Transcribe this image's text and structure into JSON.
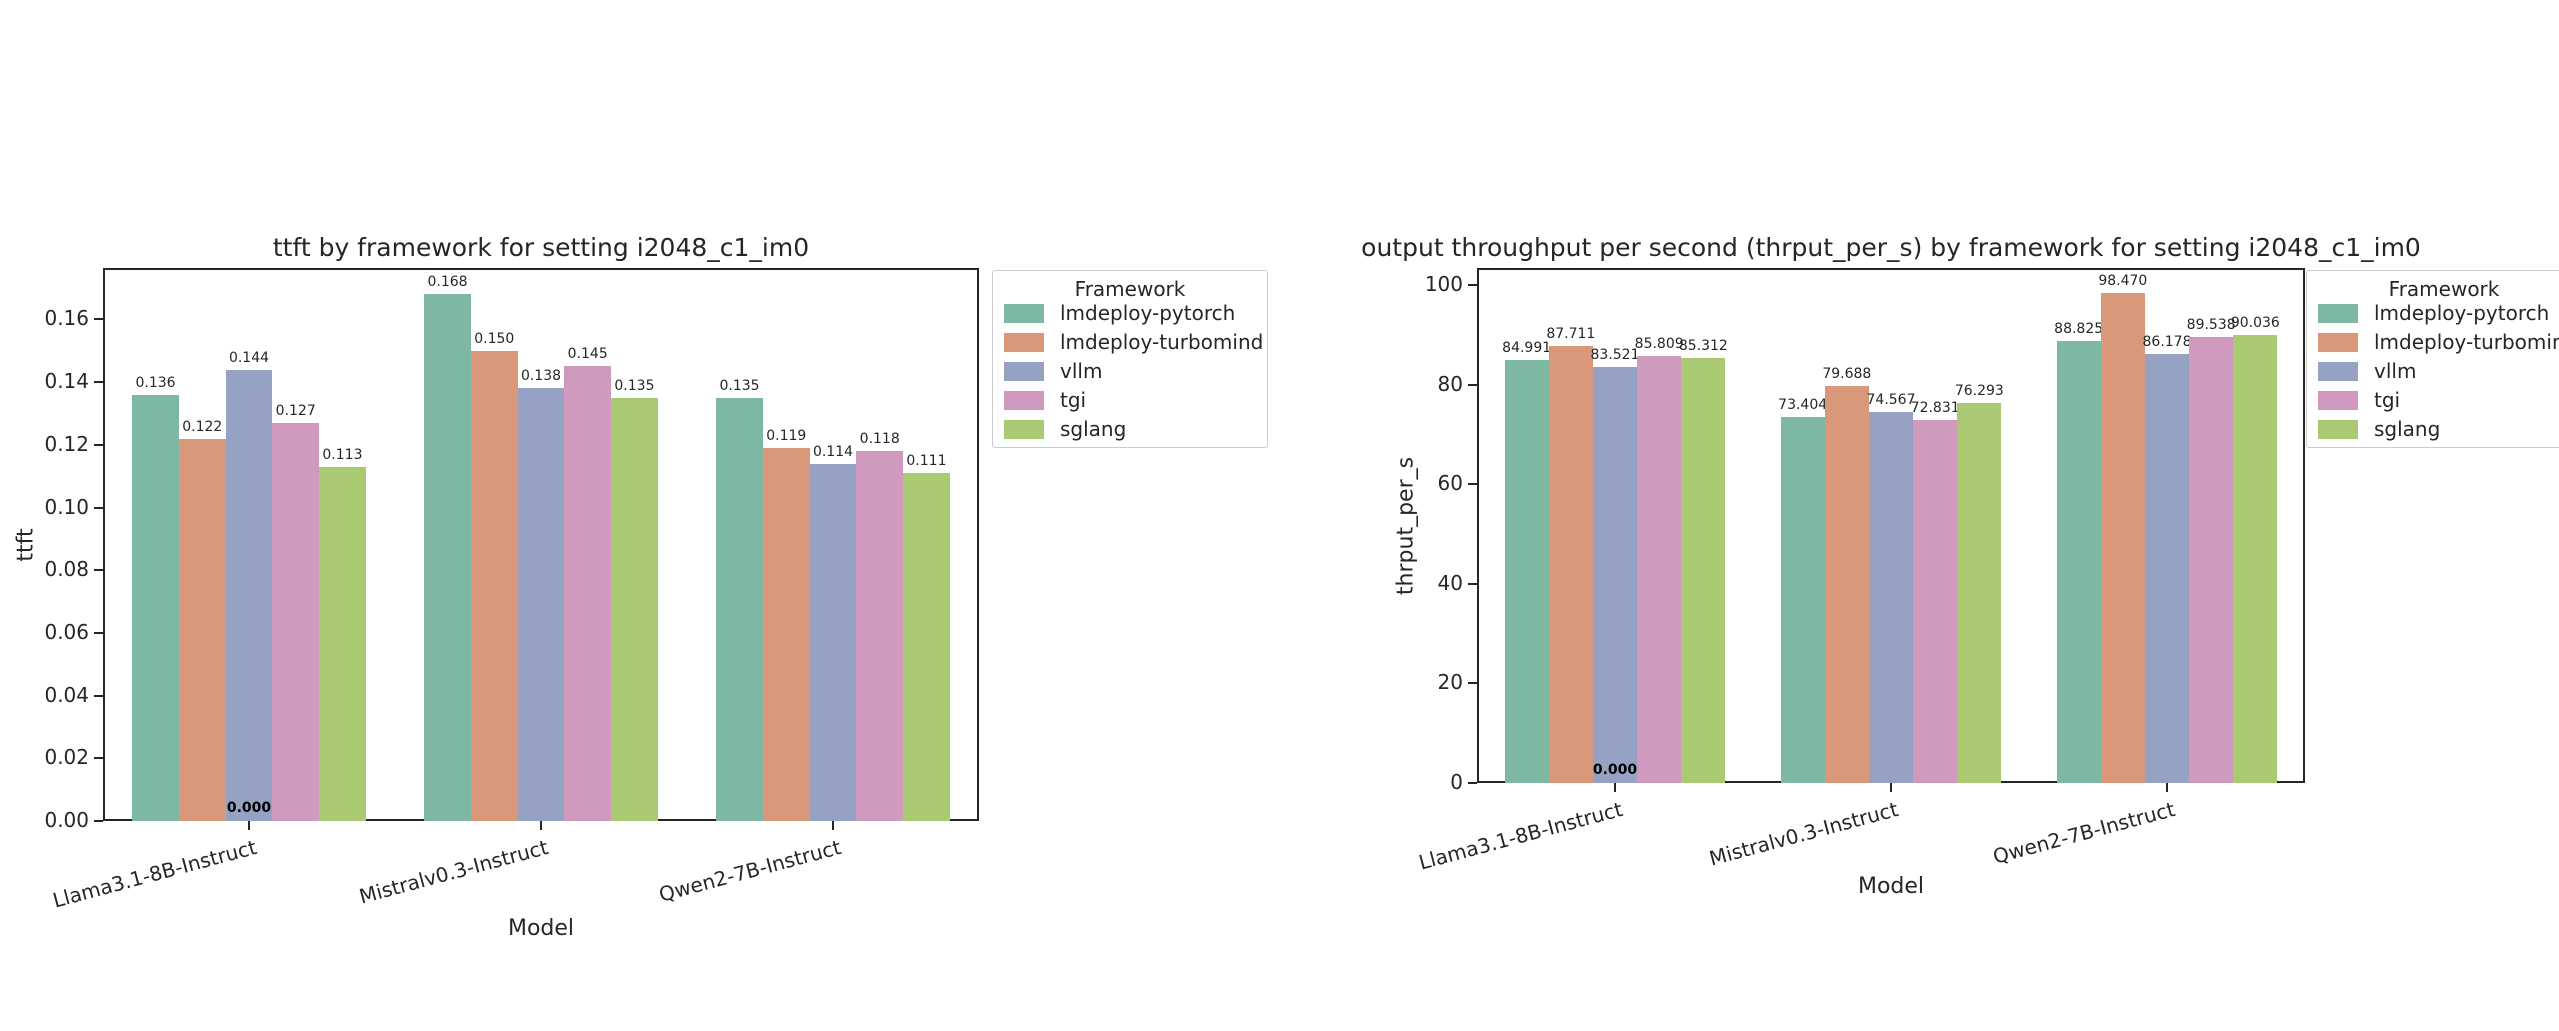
{
  "page": {
    "background": "#ffffff"
  },
  "colors": {
    "axis": "#262626",
    "text": "#262626",
    "legend_border": "#cccccc",
    "framework_colors": {
      "lmdeploy-pytorch": "#7eb8a3",
      "lmdeploy-turbomind": "#da987a",
      "vllm": "#95a2c3",
      "tgi": "#cf9abd",
      "sglang": "#a9c973"
    }
  },
  "legend": {
    "title": "Framework",
    "entries": [
      "lmdeploy-pytorch",
      "lmdeploy-turbomind",
      "vllm",
      "tgi",
      "sglang"
    ]
  },
  "chart_data": [
    {
      "type": "bar",
      "title": "ttft by framework for setting i2048_c1_im0",
      "xlabel": "Model",
      "ylabel": "ttft",
      "categories": [
        "Llama3.1-8B-Instruct",
        "Mistralv0.3-Instruct",
        "Qwen2-7B-Instruct"
      ],
      "series": [
        {
          "name": "lmdeploy-pytorch",
          "values": [
            0.136,
            0.168,
            0.135
          ]
        },
        {
          "name": "lmdeploy-turbomind",
          "values": [
            0.122,
            0.15,
            0.119
          ]
        },
        {
          "name": "vllm",
          "values": [
            0.144,
            0.138,
            0.114
          ]
        },
        {
          "name": "tgi",
          "values": [
            0.127,
            0.145,
            0.118
          ]
        },
        {
          "name": "sglang",
          "values": [
            0.113,
            0.135,
            0.111
          ]
        }
      ],
      "zero_label": {
        "text": "0.000",
        "category_index": 0,
        "series_index": 2
      },
      "ylim": [
        0,
        0.1764
      ],
      "yticks": [
        0.0,
        0.02,
        0.04,
        0.06,
        0.08,
        0.1,
        0.12,
        0.14,
        0.16
      ],
      "ytick_decimals": 2,
      "bar_label_decimals": 3,
      "legend_position": "outside-right",
      "grid": false
    },
    {
      "type": "bar",
      "title": "output throughput per second (thrput_per_s) by framework for setting i2048_c1_im0",
      "xlabel": "Model",
      "ylabel": "thrput_per_s",
      "categories": [
        "Llama3.1-8B-Instruct",
        "Mistralv0.3-Instruct",
        "Qwen2-7B-Instruct"
      ],
      "series": [
        {
          "name": "lmdeploy-pytorch",
          "values": [
            84.991,
            73.404,
            88.825
          ]
        },
        {
          "name": "lmdeploy-turbomind",
          "values": [
            87.711,
            79.688,
            98.47
          ]
        },
        {
          "name": "vllm",
          "values": [
            83.521,
            74.567,
            86.178
          ]
        },
        {
          "name": "tgi",
          "values": [
            85.809,
            72.831,
            89.538
          ]
        },
        {
          "name": "sglang",
          "values": [
            85.312,
            76.293,
            90.036
          ]
        }
      ],
      "zero_label": {
        "text": "0.000",
        "category_index": 0,
        "series_index": 2
      },
      "ylim": [
        0,
        103.4
      ],
      "yticks": [
        0,
        20,
        40,
        60,
        80,
        100
      ],
      "ytick_decimals": 0,
      "bar_label_decimals": 3,
      "legend_position": "outside-right",
      "grid": false
    }
  ]
}
